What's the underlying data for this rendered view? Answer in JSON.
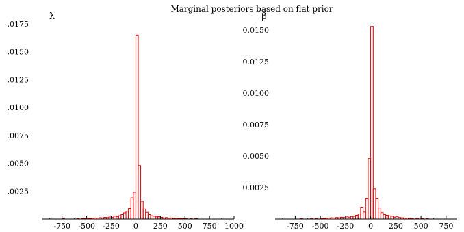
{
  "figure": {
    "title": "Marginal posteriors based on flat prior"
  },
  "colors": {
    "bar": "#dd0000",
    "axis": "#000000",
    "background": "#ffffff"
  },
  "chart_data": [
    {
      "type": "bar",
      "ylabel": "λ",
      "xlim": [
        -950,
        1000
      ],
      "ylim": [
        0,
        0.0175
      ],
      "xticks": [
        -750,
        -500,
        -250,
        0,
        250,
        500,
        750,
        1000
      ],
      "xtick_labels": [
        "-750",
        "-500",
        "-250",
        "0",
        "250",
        "500",
        "750",
        "1000"
      ],
      "yticks": [
        0.0025,
        0.005,
        0.0075,
        0.01,
        0.0125,
        0.015,
        0.0175
      ],
      "ytick_labels": [
        ".0025",
        ".0050",
        ".0075",
        ".0100",
        ".0125",
        ".0150",
        ".0175"
      ],
      "grid": false,
      "bin_width": 25,
      "bins": [
        {
          "x0": -750,
          "y": 3e-05
        },
        {
          "x0": -600,
          "y": 4e-05
        },
        {
          "x0": -550,
          "y": 5e-05
        },
        {
          "x0": -525,
          "y": 5e-05
        },
        {
          "x0": -500,
          "y": 7e-05
        },
        {
          "x0": -475,
          "y": 6e-05
        },
        {
          "x0": -450,
          "y": 8e-05
        },
        {
          "x0": -425,
          "y": 0.0001
        },
        {
          "x0": -400,
          "y": 9e-05
        },
        {
          "x0": -375,
          "y": 0.00012
        },
        {
          "x0": -350,
          "y": 0.0001
        },
        {
          "x0": -325,
          "y": 0.00015
        },
        {
          "x0": -300,
          "y": 0.00013
        },
        {
          "x0": -275,
          "y": 0.00018
        },
        {
          "x0": -250,
          "y": 0.00015
        },
        {
          "x0": -225,
          "y": 0.00025
        },
        {
          "x0": -200,
          "y": 0.0002
        },
        {
          "x0": -175,
          "y": 0.0003
        },
        {
          "x0": -150,
          "y": 0.0004
        },
        {
          "x0": -125,
          "y": 0.00055
        },
        {
          "x0": -100,
          "y": 0.0007
        },
        {
          "x0": -75,
          "y": 0.00095
        },
        {
          "x0": -50,
          "y": 0.0019
        },
        {
          "x0": -25,
          "y": 0.0024
        },
        {
          "x0": 0,
          "y": 0.0165
        },
        {
          "x0": 25,
          "y": 0.0048
        },
        {
          "x0": 50,
          "y": 0.0016
        },
        {
          "x0": 75,
          "y": 0.0009
        },
        {
          "x0": 100,
          "y": 0.0006
        },
        {
          "x0": 125,
          "y": 0.0004
        },
        {
          "x0": 150,
          "y": 0.0003
        },
        {
          "x0": 175,
          "y": 0.00025
        },
        {
          "x0": 200,
          "y": 0.0002
        },
        {
          "x0": 225,
          "y": 0.00022
        },
        {
          "x0": 250,
          "y": 0.00015
        },
        {
          "x0": 275,
          "y": 0.0001
        },
        {
          "x0": 300,
          "y": 0.00013
        },
        {
          "x0": 325,
          "y": 8e-05
        },
        {
          "x0": 350,
          "y": 0.0001
        },
        {
          "x0": 375,
          "y": 6e-05
        },
        {
          "x0": 400,
          "y": 7e-05
        },
        {
          "x0": 425,
          "y": 5e-05
        },
        {
          "x0": 450,
          "y": 6e-05
        },
        {
          "x0": 475,
          "y": 4e-05
        },
        {
          "x0": 500,
          "y": 4e-05
        },
        {
          "x0": 550,
          "y": 3e-05
        },
        {
          "x0": 600,
          "y": 3e-05
        }
      ]
    },
    {
      "type": "bar",
      "ylabel": "β",
      "xlim": [
        -950,
        860
      ],
      "ylim": [
        0,
        0.0155
      ],
      "xticks": [
        -750,
        -500,
        -250,
        0,
        250,
        500,
        750
      ],
      "xtick_labels": [
        "-750",
        "-500",
        "-250",
        "0",
        "250",
        "500",
        "750"
      ],
      "yticks": [
        0.0025,
        0.005,
        0.0075,
        0.01,
        0.0125,
        0.015
      ],
      "ytick_labels": [
        "0.0025",
        "0.0050",
        "0.0075",
        "0.0100",
        "0.0125",
        "0.0150"
      ],
      "grid": false,
      "bin_width": 25,
      "bins": [
        {
          "x0": -700,
          "y": 3e-05
        },
        {
          "x0": -600,
          "y": 4e-05
        },
        {
          "x0": -550,
          "y": 4e-05
        },
        {
          "x0": -500,
          "y": 6e-05
        },
        {
          "x0": -475,
          "y": 5e-05
        },
        {
          "x0": -450,
          "y": 7e-05
        },
        {
          "x0": -425,
          "y": 8e-05
        },
        {
          "x0": -400,
          "y": 0.0001
        },
        {
          "x0": -375,
          "y": 9e-05
        },
        {
          "x0": -350,
          "y": 0.00012
        },
        {
          "x0": -325,
          "y": 0.0001
        },
        {
          "x0": -300,
          "y": 0.00014
        },
        {
          "x0": -275,
          "y": 0.00012
        },
        {
          "x0": -250,
          "y": 0.00017
        },
        {
          "x0": -225,
          "y": 0.00015
        },
        {
          "x0": -200,
          "y": 0.0002
        },
        {
          "x0": -175,
          "y": 0.00022
        },
        {
          "x0": -150,
          "y": 0.0003
        },
        {
          "x0": -125,
          "y": 0.0004
        },
        {
          "x0": -100,
          "y": 0.0009
        },
        {
          "x0": -75,
          "y": 0.00055
        },
        {
          "x0": -50,
          "y": 0.0016
        },
        {
          "x0": -25,
          "y": 0.0048
        },
        {
          "x0": 0,
          "y": 0.0153
        },
        {
          "x0": 25,
          "y": 0.0024
        },
        {
          "x0": 50,
          "y": 0.0016
        },
        {
          "x0": 75,
          "y": 0.0008
        },
        {
          "x0": 100,
          "y": 0.0005
        },
        {
          "x0": 125,
          "y": 0.00035
        },
        {
          "x0": 150,
          "y": 0.0003
        },
        {
          "x0": 175,
          "y": 0.00025
        },
        {
          "x0": 200,
          "y": 0.00022
        },
        {
          "x0": 225,
          "y": 0.00015
        },
        {
          "x0": 250,
          "y": 0.00018
        },
        {
          "x0": 275,
          "y": 0.00012
        },
        {
          "x0": 300,
          "y": 0.0001
        },
        {
          "x0": 325,
          "y": 8e-05
        },
        {
          "x0": 350,
          "y": 8e-05
        },
        {
          "x0": 375,
          "y": 6e-05
        },
        {
          "x0": 400,
          "y": 5e-05
        },
        {
          "x0": 450,
          "y": 5e-05
        },
        {
          "x0": 500,
          "y": 4e-05
        },
        {
          "x0": 550,
          "y": 3e-05
        }
      ]
    }
  ]
}
